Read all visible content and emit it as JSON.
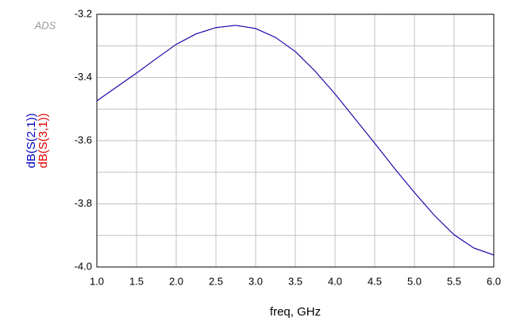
{
  "chart_data": {
    "type": "line",
    "watermark": "ADS",
    "xlabel": "freq, GHz",
    "x": [
      1.0,
      1.25,
      1.5,
      1.75,
      2.0,
      2.25,
      2.5,
      2.75,
      3.0,
      3.25,
      3.5,
      3.75,
      4.0,
      4.25,
      4.5,
      4.75,
      5.0,
      5.25,
      5.5,
      5.75,
      6.0
    ],
    "series": [
      {
        "name": "dB(S(3,1))",
        "color": "#e00000",
        "values": [
          -3.474,
          -3.43,
          -3.386,
          -3.34,
          -3.295,
          -3.262,
          -3.242,
          -3.235,
          -3.245,
          -3.273,
          -3.318,
          -3.38,
          -3.452,
          -3.53,
          -3.608,
          -3.688,
          -3.764,
          -3.836,
          -3.898,
          -3.94,
          -3.962
        ]
      },
      {
        "name": "dB(S(2,1))",
        "color": "#0000c0",
        "values": [
          -3.474,
          -3.43,
          -3.386,
          -3.34,
          -3.295,
          -3.262,
          -3.242,
          -3.235,
          -3.245,
          -3.273,
          -3.318,
          -3.38,
          -3.452,
          -3.53,
          -3.608,
          -3.688,
          -3.764,
          -3.836,
          -3.898,
          -3.94,
          -3.962
        ]
      }
    ],
    "xlim": [
      1.0,
      6.0
    ],
    "xticks": [
      {
        "value": 1,
        "label": "1.0"
      },
      1.5,
      {
        "value": 2,
        "label": "2.0"
      },
      2.5,
      {
        "value": 3,
        "label": "3.0"
      },
      3.5,
      {
        "value": 4,
        "label": "4.0"
      },
      4.5,
      {
        "value": 5,
        "label": "5.0"
      },
      5.5,
      {
        "value": 6,
        "label": "6.0"
      }
    ],
    "ylim": [
      -4.0,
      -3.2
    ],
    "yticks": [
      {
        "value": -4,
        "label": "-4.0"
      },
      -3.8,
      -3.6,
      -3.4,
      -3.2
    ],
    "yminor": [
      -3.9,
      -3.7,
      -3.5,
      -3.3
    ],
    "grid": true
  }
}
